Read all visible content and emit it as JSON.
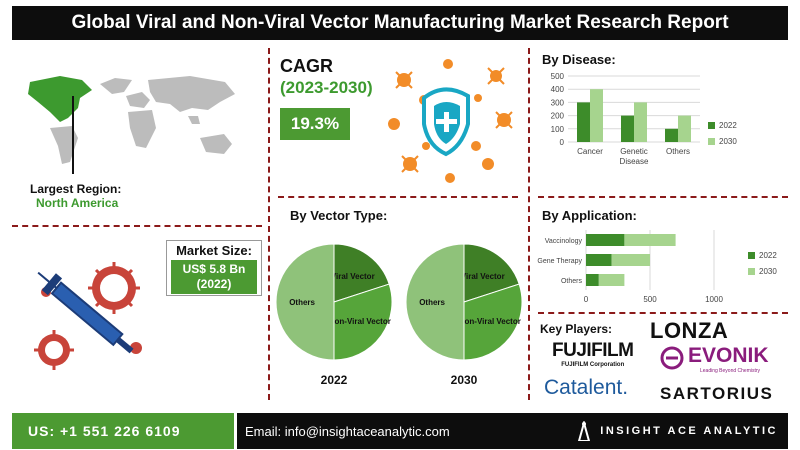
{
  "header": {
    "title": "Global Viral and Non-Viral Vector Manufacturing Market Research Report"
  },
  "region": {
    "label": "Largest Region:",
    "value": "North America"
  },
  "cagr": {
    "title": "CAGR",
    "years": "(2023-2030)",
    "value": "19.3%"
  },
  "market_size": {
    "label": "Market Size:",
    "value": "US$ 5.8 Bn",
    "year": "(2022)"
  },
  "vector_type": {
    "title": "By Vector Type:",
    "pies": [
      {
        "year": "2022",
        "slices": [
          {
            "label": "Viral Vector",
            "value": 20
          },
          {
            "label": "Non-Viral Vector",
            "value": 30
          },
          {
            "label": "Others",
            "value": 50
          }
        ]
      },
      {
        "year": "2030",
        "slices": [
          {
            "label": "Viral Vector",
            "value": 20
          },
          {
            "label": "Non-Viral Vector",
            "value": 30
          },
          {
            "label": "Others",
            "value": 50
          }
        ]
      }
    ]
  },
  "key_players": {
    "label": "Key Players:",
    "logos": {
      "lonza": "LONZA",
      "fujifilm": "FUJIFILM",
      "fujifilm_sub": "FUJIFILM Corporation",
      "evonik": "EVONIK",
      "evonik_sub": "Leading Beyond Chemistry",
      "catalent": "Catalent.",
      "sartorius": "SARTORIUS"
    }
  },
  "chart_data": [
    {
      "type": "bar",
      "title": "By Disease:",
      "categories": [
        "Cancer",
        "Genetic Disease",
        "Others"
      ],
      "series": [
        {
          "name": "2022",
          "values": [
            300,
            200,
            100
          ]
        },
        {
          "name": "2030",
          "values": [
            400,
            300,
            200
          ]
        }
      ],
      "ylim": [
        0,
        500
      ],
      "yticks": [
        "0",
        "100",
        "200",
        "300",
        "400",
        "500"
      ],
      "grid": true,
      "legend": "right",
      "colors": [
        "#3d8c2a",
        "#a6d48e"
      ]
    },
    {
      "type": "bar",
      "orientation": "horizontal",
      "title": "By Application:",
      "categories": [
        "Vaccinology",
        "Gene Therapy",
        "Others"
      ],
      "series": [
        {
          "name": "2022",
          "values": [
            300,
            200,
            100
          ]
        },
        {
          "name": "2030",
          "values": [
            400,
            300,
            200
          ]
        }
      ],
      "xlim": [
        0,
        1000
      ],
      "xticks": [
        "0",
        "500",
        "1000"
      ],
      "grid": true,
      "legend": "right",
      "colors": [
        "#3d8c2a",
        "#a6d48e"
      ]
    }
  ],
  "footer": {
    "phone": "US: +1 551 226 6109",
    "email": "Email: info@insightaceanalytic.com",
    "brand": "INSIGHT ACE ANALYTIC"
  },
  "icons": {
    "map": "world-map-icon",
    "virus_shield": "virus-shield-icon",
    "syringe": "syringe-virus-icon",
    "brand": "insightace-logo-icon"
  },
  "colors": {
    "green": "#4c9a32",
    "dark": "#0d0d0d",
    "divider": "#8b1a1a",
    "virus": "#f28c28"
  }
}
